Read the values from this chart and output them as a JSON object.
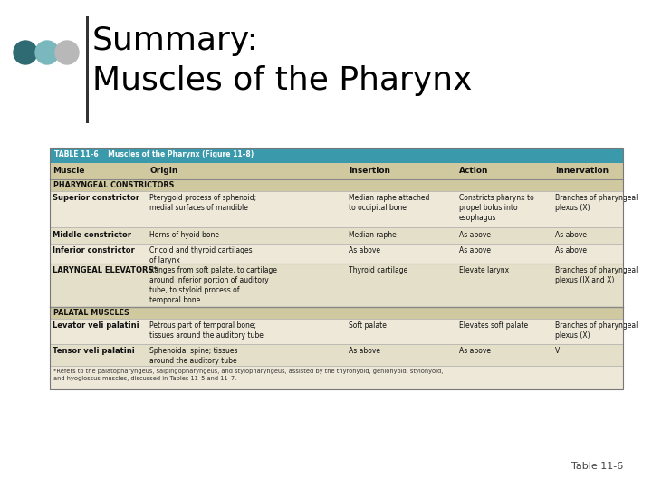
{
  "title_line1": "Summary:",
  "title_line2": "Muscles of the Pharynx",
  "table_title": "TABLE 11–6    Muscles of the Pharynx (Figure 11–8)",
  "col_headers": [
    "Muscle",
    "Origin",
    "Insertion",
    "Action",
    "Innervation"
  ],
  "section1_label": "PHARYNGEAL CONSTRICTORS",
  "section2_label": "LARYNGEAL ELEVATORS*",
  "section3_label": "PALATAL MUSCLES",
  "rows": [
    {
      "muscle": "Superior constrictor",
      "origin": "Pterygoid process of sphenoid;\nmedial surfaces of mandible",
      "insertion": "Median raphe attached\nto occipital bone",
      "action": "Constricts pharynx to\npropel bolus into\nesophagus",
      "innervation": "Branches of pharyngeal\nplexus (X)"
    },
    {
      "muscle": "Middle constrictor",
      "origin": "Horns of hyoid bone",
      "insertion": "Median raphe",
      "action": "As above",
      "innervation": "As above"
    },
    {
      "muscle": "Inferior constrictor",
      "origin": "Cricoid and thyroid cartilages\nof larynx",
      "insertion": "As above",
      "action": "As above",
      "innervation": "As above"
    },
    {
      "muscle": "LARYNGEAL ELEVATORS*",
      "origin": "Ranges from soft palate, to cartilage\naround inferior portion of auditory\ntube, to styloid process of\ntemporal bone",
      "insertion": "Thyroid cartilage",
      "action": "Elevate larynx",
      "innervation": "Branches of pharyngeal\nplexus (IX and X)"
    },
    {
      "muscle": "Levator veli palatini",
      "origin": "Petrous part of temporal bone;\ntissues around the auditory tube",
      "insertion": "Soft palate",
      "action": "Elevates soft palate",
      "innervation": "Branches of pharyngeal\nplexus (X)"
    },
    {
      "muscle": "Tensor veli palatini",
      "origin": "Sphenoidal spine; tissues\naround the auditory tube",
      "insertion": "As above",
      "action": "As above",
      "innervation": "V"
    }
  ],
  "footnote": "*Refers to the palatopharyngeus, salpingopharyngeus, and stylopharyngeus, assisted by the thyrohyoid, geniohyoid, stylohyoid,\nand hyoglossus muscles, discussed in Tables 11–5 and 11–7.",
  "header_bg": "#3a9aac",
  "header_text": "#ffffff",
  "subheader_bg": "#d0c9a0",
  "body_bg_light": "#ede8d8",
  "body_bg_dark": "#e4dfc9",
  "table_line_color": "#aaaaaa",
  "thick_line_color": "#888888",
  "title_color": "#000000",
  "dot_colors": [
    "#2e6b72",
    "#7ab8be",
    "#b8b8b8"
  ],
  "footer_text": "Table 11-6",
  "bg_color": "#ffffff"
}
